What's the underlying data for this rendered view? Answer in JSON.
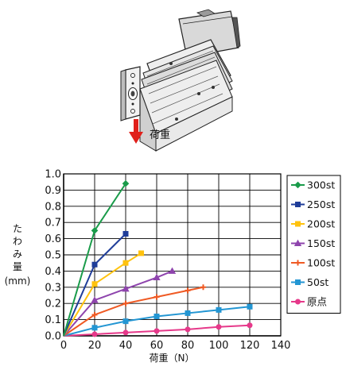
{
  "illustration": {
    "load_caption": "荷重",
    "arrow_color": "#e0201b"
  },
  "chart_data": {
    "type": "line",
    "xlabel": "荷重（N）",
    "ylabel_chars": [
      "た",
      "わ",
      "み",
      "量",
      "(mm)"
    ],
    "xlim": [
      0,
      140
    ],
    "ylim": [
      0,
      1.0
    ],
    "x_ticks": [
      0,
      20,
      40,
      60,
      80,
      100,
      120,
      140
    ],
    "y_ticks": [
      "0.0",
      "0.1",
      "0.2",
      "0.3",
      "0.4",
      "0.5",
      "0.6",
      "0.7",
      "0.8",
      "0.9",
      "1.0"
    ],
    "grid": true,
    "legend_position": "right",
    "series": [
      {
        "name": "300st",
        "color": "#1a9b4a",
        "marker": "diamond",
        "x": [
          0,
          20,
          40
        ],
        "y": [
          0,
          0.65,
          0.94
        ]
      },
      {
        "name": "250st",
        "color": "#1f3d99",
        "marker": "square",
        "x": [
          0,
          20,
          40
        ],
        "y": [
          0,
          0.44,
          0.63
        ]
      },
      {
        "name": "200st",
        "color": "#ffc20e",
        "marker": "square",
        "x": [
          0,
          20,
          40,
          50
        ],
        "y": [
          0,
          0.32,
          0.45,
          0.51
        ]
      },
      {
        "name": "150st",
        "color": "#8e44ad",
        "marker": "triangle",
        "x": [
          0,
          20,
          40,
          60,
          70
        ],
        "y": [
          0,
          0.22,
          0.29,
          0.36,
          0.4
        ]
      },
      {
        "name": "100st",
        "color": "#ef5a24",
        "marker": "plus",
        "x": [
          0,
          20,
          40,
          60,
          80,
          90
        ],
        "y": [
          0,
          0.13,
          0.2,
          0.24,
          0.28,
          0.3
        ]
      },
      {
        "name": "50st",
        "color": "#2396d3",
        "marker": "square",
        "x": [
          0,
          20,
          40,
          60,
          80,
          100,
          120
        ],
        "y": [
          0,
          0.05,
          0.09,
          0.12,
          0.14,
          0.16,
          0.18
        ]
      },
      {
        "name": "原点",
        "color": "#e6398a",
        "marker": "circle",
        "x": [
          0,
          20,
          40,
          60,
          80,
          100,
          120
        ],
        "y": [
          0,
          0.01,
          0.02,
          0.03,
          0.04,
          0.055,
          0.065
        ]
      }
    ]
  }
}
